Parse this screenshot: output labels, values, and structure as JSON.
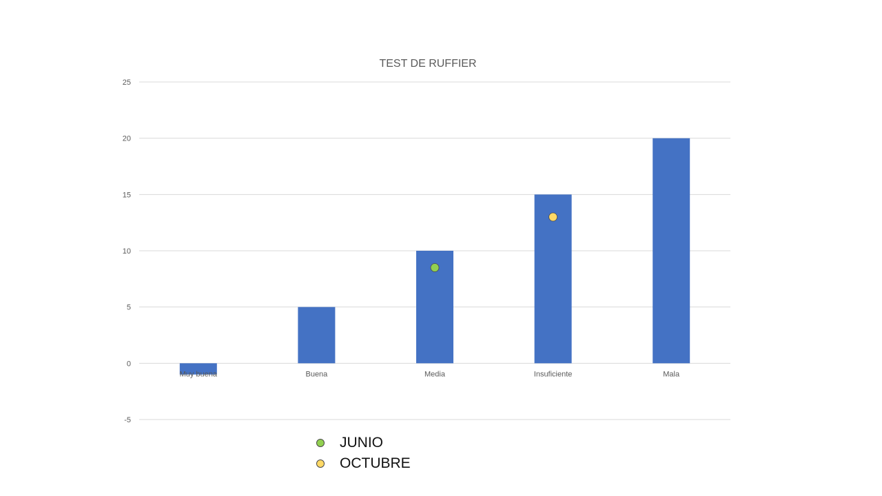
{
  "chart_data": {
    "type": "bar",
    "title": "TEST DE RUFFIER",
    "xlabel": "",
    "ylabel": "",
    "categories": [
      "Muy buena",
      "Buena",
      "Media",
      "Insuficiente",
      "Mala"
    ],
    "values": [
      -1,
      5,
      10,
      15,
      20
    ],
    "bar_color": "#4472c4",
    "ylim": [
      -5,
      25
    ],
    "yticks": [
      -5,
      0,
      5,
      10,
      15,
      20,
      25
    ],
    "grid": true,
    "markers": [
      {
        "name": "JUNIO",
        "category": "Media",
        "y": 8.5,
        "color": "#92d050"
      },
      {
        "name": "OCTUBRE",
        "category": "Insuficiente",
        "y": 13,
        "color": "#ffd966"
      }
    ],
    "legend_position": "bottom-left"
  },
  "legend": {
    "items": [
      {
        "label": "JUNIO",
        "color": "#92d050"
      },
      {
        "label": "OCTUBRE",
        "color": "#ffd966"
      }
    ]
  }
}
